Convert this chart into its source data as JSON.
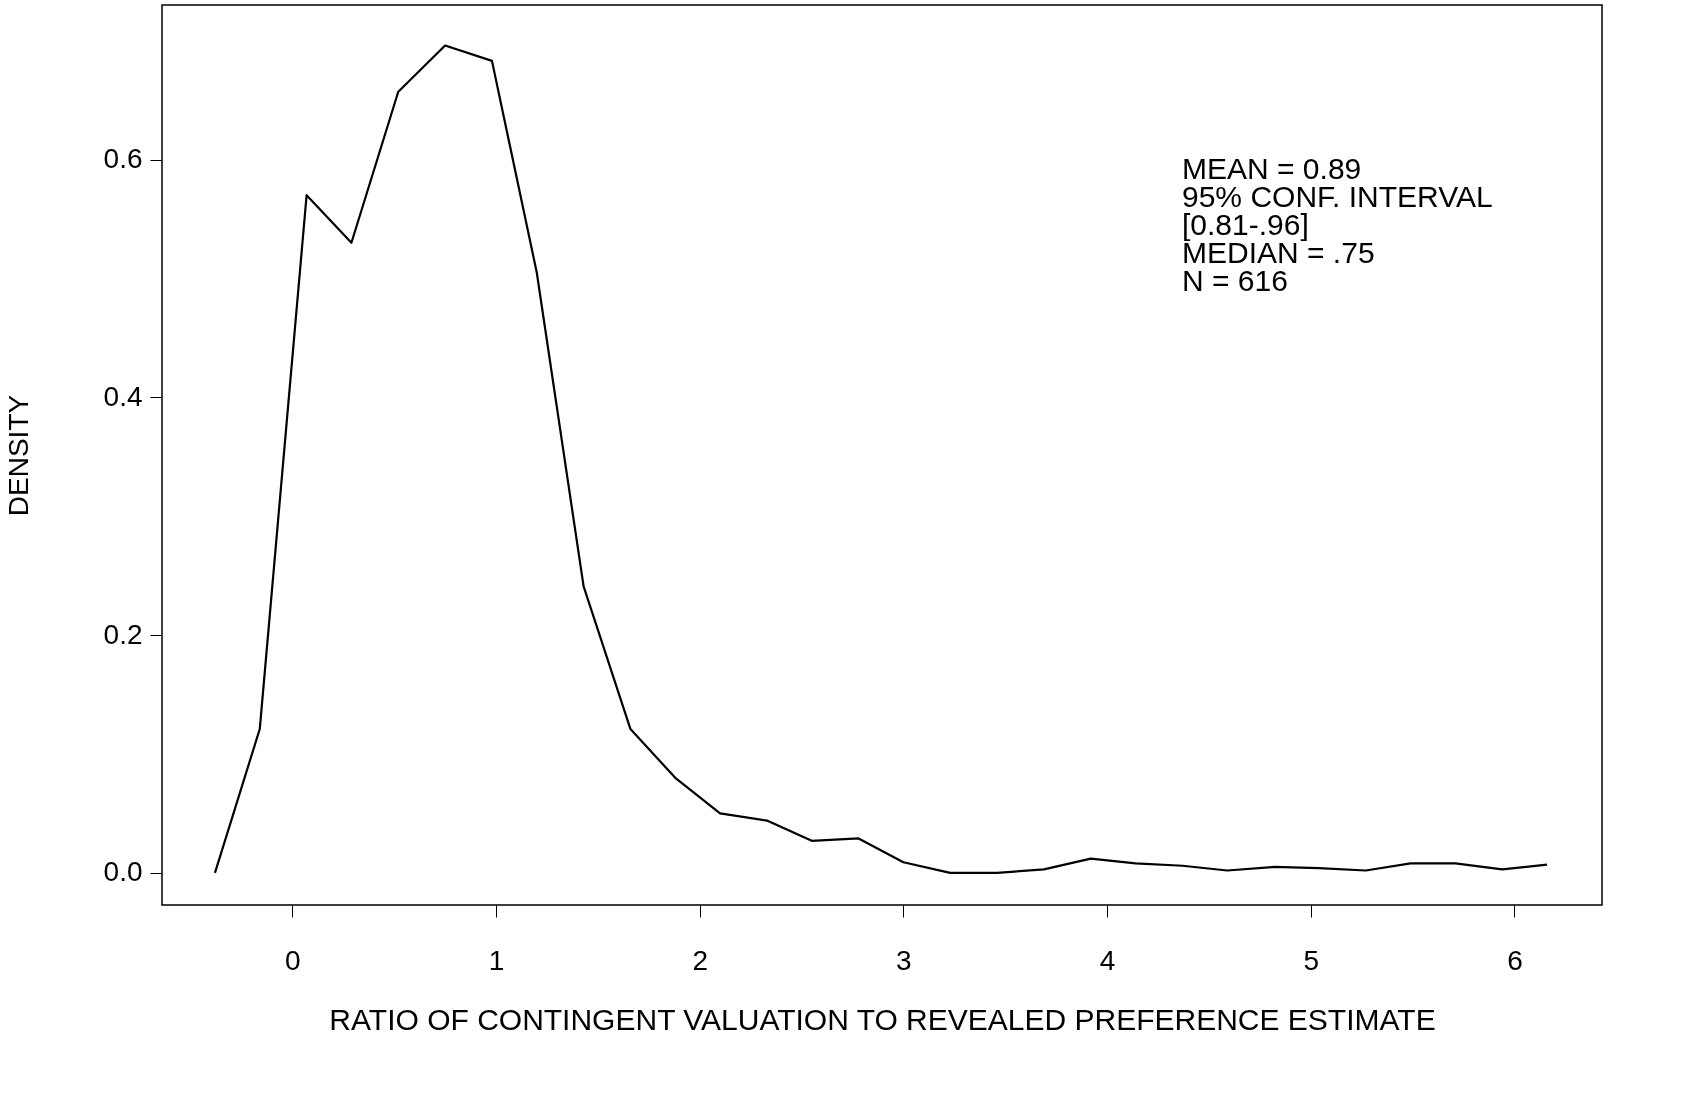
{
  "chart_data": {
    "type": "line",
    "xlabel": "RATIO OF CONTINGENT VALUATION TO REVEALED PREFERENCE ESTIMATE",
    "ylabel": "DENSITY",
    "x": [
      -0.38,
      -0.16,
      0.07,
      0.29,
      0.52,
      0.75,
      0.98,
      1.2,
      1.43,
      1.66,
      1.88,
      2.1,
      2.33,
      2.55,
      2.78,
      3.0,
      3.23,
      3.46,
      3.69,
      3.92,
      4.14,
      4.37,
      4.59,
      4.82,
      5.04,
      5.27,
      5.49,
      5.71,
      5.94,
      6.16
    ],
    "series": [
      {
        "color": "#000000",
        "values": [
          0,
          0.121,
          0.57,
          0.53,
          0.657,
          0.696,
          0.683,
          0.505,
          0.241,
          0.121,
          0.08,
          0.05,
          0.044,
          0.027,
          0.029,
          0.009,
          0,
          0,
          0.003,
          0.012,
          0.008,
          0.006,
          0.002,
          0.005,
          0.004,
          0.002,
          0.008,
          0.008,
          0.003,
          0.007
        ]
      }
    ],
    "xlim": [
      -0.64,
      6.43
    ],
    "ylim": [
      -0.027,
      0.73
    ],
    "xticks": [
      0,
      1,
      2,
      3,
      4,
      5,
      6
    ],
    "yticks": [
      {
        "value": 0,
        "label": "0.0"
      },
      {
        "value": 0.2,
        "label": "0.2"
      },
      {
        "value": 0.4,
        "label": "0.4"
      },
      {
        "value": 0.6,
        "label": "0.6"
      }
    ],
    "grid": false,
    "marker": "none",
    "line_style": "solid",
    "annotations": [
      "MEAN = 0.89",
      "95% CONF. INTERVAL",
      "[0.81-.96]",
      "MEDIAN = .75",
      "N = 616"
    ]
  }
}
